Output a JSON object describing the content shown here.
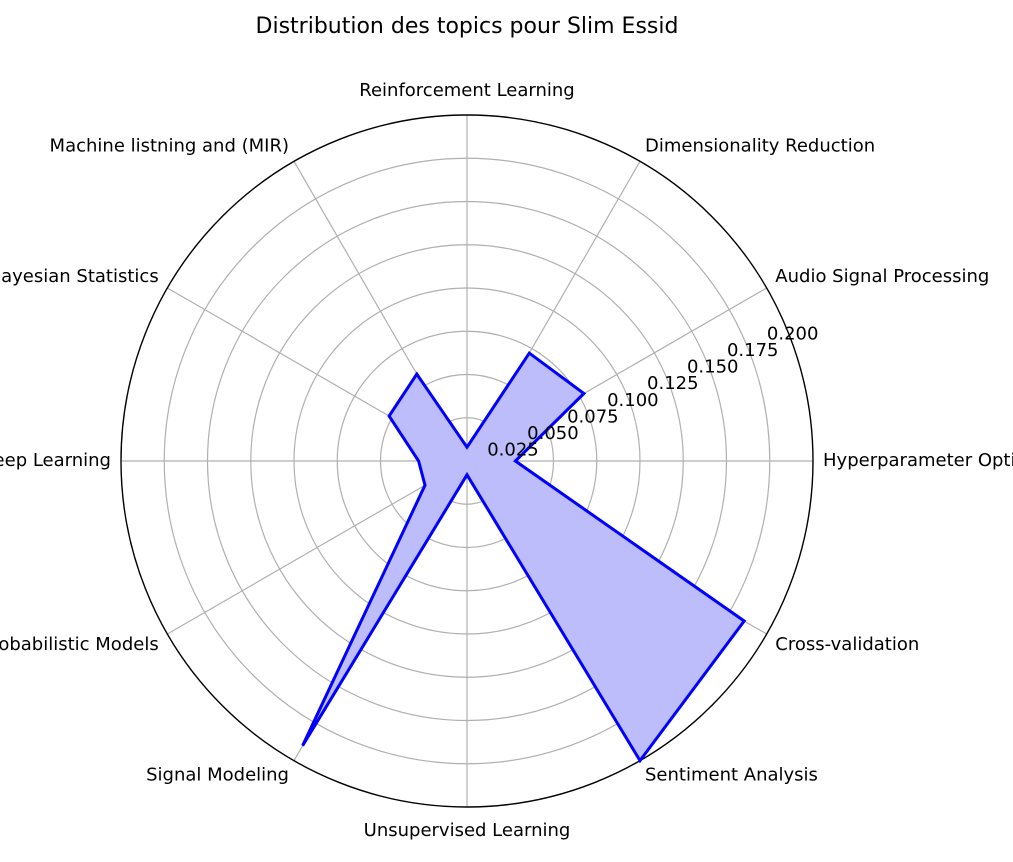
{
  "chart_data": {
    "type": "radar",
    "title": "Distribution des topics pour Slim Essid",
    "categories": [
      "Hyperparameter Optimization",
      "Audio Signal Processing",
      "Dimensionality Reduction",
      "Reinforcement Learning",
      "Machine listning and (MIR)",
      "Bayesian Statistics",
      "Deep Learning",
      "Probabilistic Models",
      "Signal Modeling",
      "Unsupervised Learning",
      "Sentiment Analysis",
      "Cross-validation"
    ],
    "values": [
      0.028,
      0.078,
      0.072,
      0.008,
      0.058,
      0.052,
      0.028,
      0.028,
      0.19,
      0.008,
      0.2,
      0.185
    ],
    "rlim": [
      0,
      0.2
    ],
    "rticks": [
      "0.025",
      "0.050",
      "0.075",
      "0.100",
      "0.125",
      "0.150",
      "0.175",
      "0.200"
    ],
    "grid": true,
    "colors": {
      "line": "#0000ff",
      "fill": "#bdbdfb",
      "grid": "#b0b0b0",
      "frame": "#000000"
    }
  }
}
